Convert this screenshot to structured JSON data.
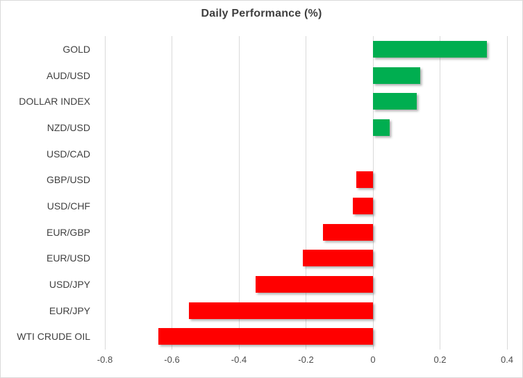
{
  "chart_data": {
    "type": "bar",
    "orientation": "horizontal",
    "title": "Daily Performance (%)",
    "categories": [
      "GOLD",
      "AUD/USD",
      "DOLLAR INDEX",
      "NZD/USD",
      "USD/CAD",
      "GBP/USD",
      "USD/CHF",
      "EUR/GBP",
      "EUR/USD",
      "USD/JPY",
      "EUR/JPY",
      "WTI CRUDE OIL"
    ],
    "values": [
      0.34,
      0.14,
      0.13,
      0.05,
      0.0,
      -0.05,
      -0.06,
      -0.15,
      -0.21,
      -0.35,
      -0.55,
      -0.64
    ],
    "xlabel": "",
    "ylabel": "",
    "xlim": [
      -0.8,
      0.4
    ],
    "xticks": [
      -0.8,
      -0.6,
      -0.4,
      -0.2,
      0,
      0.2,
      0.4
    ],
    "xtick_labels": [
      "-0.8",
      "-0.6",
      "-0.4",
      "-0.2",
      "0",
      "0.2",
      "0.4"
    ],
    "grid": "vertical-only",
    "legend": "none",
    "colors": {
      "positive": "#00AE50",
      "negative": "#FF0000",
      "gridline": "#D9D9D9",
      "title_text": "#3F3F3F",
      "category_text": "#3F3F3F",
      "tick_text": "#4D4D4D",
      "border": "#D9D9D9",
      "background": "#FFFFFF"
    }
  }
}
